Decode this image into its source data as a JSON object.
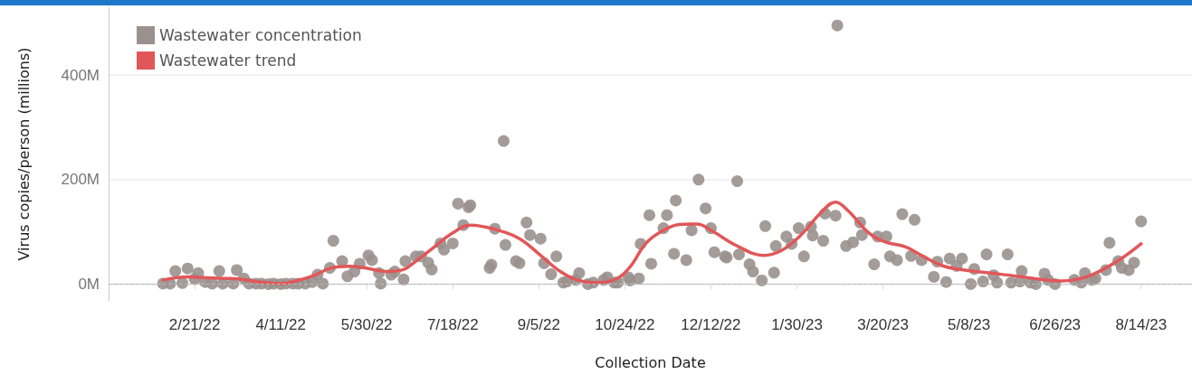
{
  "chart_data": {
    "type": "scatter",
    "xlabel": "Collection Date",
    "ylabel": "Virus copies/person (millions)",
    "xlim": [
      "2022-01-03",
      "2023-09-12"
    ],
    "xticks": [
      {
        "value": "2022-02-21",
        "label": "2/21/22"
      },
      {
        "value": "2022-04-11",
        "label": "4/11/22"
      },
      {
        "value": "2022-05-30",
        "label": "5/30/22"
      },
      {
        "value": "2022-07-18",
        "label": "7/18/22"
      },
      {
        "value": "2022-09-05",
        "label": "9/5/22"
      },
      {
        "value": "2022-10-24",
        "label": "10/24/22"
      },
      {
        "value": "2022-12-12",
        "label": "12/12/22"
      },
      {
        "value": "2023-01-30",
        "label": "1/30/23"
      },
      {
        "value": "2023-03-20",
        "label": "3/20/23"
      },
      {
        "value": "2023-05-08",
        "label": "5/8/23"
      },
      {
        "value": "2023-06-26",
        "label": "6/26/23"
      },
      {
        "value": "2023-08-14",
        "label": "8/14/23"
      }
    ],
    "ylim": [
      -32,
      530
    ],
    "yticks": [
      {
        "value": 0,
        "label": "0M"
      },
      {
        "value": 200,
        "label": "200M"
      },
      {
        "value": 400,
        "label": "400M"
      }
    ],
    "grid": "y",
    "legend": "top left",
    "marker": "circle",
    "ref_lines": [
      {
        "axis": "y",
        "value": 0,
        "label": null,
        "color": "#bbbbbb",
        "line_style": "dashed"
      }
    ],
    "series": [
      {
        "name": "Wastewater concentration",
        "color": "#9a918e",
        "x": [
          "2022-02-03",
          "2022-02-07",
          "2022-02-10",
          "2022-02-14",
          "2022-02-17",
          "2022-02-21",
          "2022-02-23",
          "2022-02-27",
          "2022-03-03",
          "2022-03-07",
          "2022-03-09",
          "2022-03-15",
          "2022-03-17",
          "2022-03-21",
          "2022-03-24",
          "2022-03-28",
          "2022-03-31",
          "2022-04-04",
          "2022-04-07",
          "2022-04-11",
          "2022-04-14",
          "2022-04-18",
          "2022-04-21",
          "2022-04-25",
          "2022-04-29",
          "2022-05-02",
          "2022-05-05",
          "2022-05-09",
          "2022-05-11",
          "2022-05-16",
          "2022-05-19",
          "2022-05-23",
          "2022-05-26",
          "2022-05-31",
          "2022-06-02",
          "2022-06-06",
          "2022-06-07",
          "2022-06-13",
          "2022-06-15",
          "2022-06-20",
          "2022-06-21",
          "2022-06-27",
          "2022-06-30",
          "2022-07-04",
          "2022-07-06",
          "2022-07-11",
          "2022-07-13",
          "2022-07-18",
          "2022-07-21",
          "2022-07-24",
          "2022-07-27",
          "2022-07-28",
          "2022-08-08",
          "2022-08-09",
          "2022-08-11",
          "2022-08-16",
          "2022-08-17",
          "2022-08-23",
          "2022-08-25",
          "2022-08-29",
          "2022-08-31",
          "2022-09-06",
          "2022-09-08",
          "2022-09-12",
          "2022-09-15",
          "2022-09-19",
          "2022-09-21",
          "2022-09-26",
          "2022-09-28",
          "2022-10-03",
          "2022-10-06",
          "2022-10-12",
          "2022-10-14",
          "2022-10-18",
          "2022-10-20",
          "2022-10-26",
          "2022-10-27",
          "2022-11-01",
          "2022-11-02",
          "2022-11-07",
          "2022-11-08",
          "2022-11-15",
          "2022-11-17",
          "2022-11-21",
          "2022-11-22",
          "2022-11-28",
          "2022-12-01",
          "2022-12-05",
          "2022-12-09",
          "2022-12-12",
          "2022-12-14",
          "2022-12-20",
          "2022-12-21",
          "2022-12-27",
          "2022-12-28",
          "2023-01-03",
          "2023-01-05",
          "2023-01-10",
          "2023-01-12",
          "2023-01-17",
          "2023-01-18",
          "2023-01-24",
          "2023-01-27",
          "2023-01-31",
          "2023-02-03",
          "2023-02-07",
          "2023-02-08",
          "2023-02-14",
          "2023-02-15",
          "2023-02-21",
          "2023-02-22",
          "2023-02-27",
          "2023-03-03",
          "2023-03-07",
          "2023-03-08",
          "2023-03-15",
          "2023-03-17",
          "2023-03-22",
          "2023-03-24",
          "2023-03-28",
          "2023-03-31",
          "2023-04-05",
          "2023-04-07",
          "2023-04-11",
          "2023-04-18",
          "2023-04-20",
          "2023-04-25",
          "2023-04-27",
          "2023-05-01",
          "2023-05-04",
          "2023-05-09",
          "2023-05-11",
          "2023-05-16",
          "2023-05-18",
          "2023-05-22",
          "2023-05-24",
          "2023-05-30",
          "2023-06-01",
          "2023-06-06",
          "2023-06-07",
          "2023-06-12",
          "2023-06-15",
          "2023-06-20",
          "2023-06-22",
          "2023-06-26",
          "2023-07-07",
          "2023-07-11",
          "2023-07-13",
          "2023-07-17",
          "2023-07-19",
          "2023-07-25",
          "2023-07-27",
          "2023-08-01",
          "2023-08-03",
          "2023-08-07",
          "2023-08-10",
          "2023-08-14"
        ],
        "values": [
          1,
          1,
          25,
          2,
          30,
          10,
          21,
          4,
          1,
          25,
          1,
          1,
          27,
          11,
          1,
          1,
          1,
          0,
          1,
          0,
          1,
          1,
          1,
          1,
          4,
          18,
          1,
          31,
          83,
          44,
          15,
          24,
          39,
          55,
          46,
          21,
          1,
          18,
          24,
          9,
          44,
          53,
          53,
          41,
          28,
          78,
          66,
          78,
          154,
          113,
          147,
          151,
          31,
          37,
          106,
          274,
          75,
          44,
          40,
          118,
          94,
          87,
          40,
          19,
          53,
          3,
          5,
          8,
          21,
          0,
          3,
          8,
          13,
          3,
          3,
          13,
          7,
          11,
          77,
          132,
          39,
          107,
          132,
          58,
          160,
          46,
          103,
          200,
          145,
          107,
          61,
          53,
          51,
          197,
          57,
          38,
          24,
          7,
          111,
          22,
          73,
          91,
          77,
          107,
          53,
          110,
          93,
          83,
          135,
          131,
          495,
          73,
          80,
          118,
          94,
          38,
          91,
          91,
          53,
          46,
          134,
          54,
          123,
          46,
          14,
          43,
          4,
          49,
          35,
          49,
          0,
          29,
          5,
          57,
          17,
          3,
          57,
          3,
          5,
          25,
          3,
          0,
          20,
          8,
          0,
          8,
          3,
          21,
          8,
          11,
          27,
          79,
          44,
          31,
          27,
          41,
          120
        ]
      },
      {
        "name": "Wastewater trend",
        "type": "line",
        "color": "#e15759",
        "marker": "none",
        "line_style": "solid",
        "x": [
          "2022-02-03",
          "2022-02-17",
          "2022-02-28",
          "2022-03-18",
          "2022-03-30",
          "2022-04-11",
          "2022-04-23",
          "2022-05-01",
          "2022-05-09",
          "2022-05-20",
          "2022-05-29",
          "2022-06-10",
          "2022-06-20",
          "2022-06-27",
          "2022-07-07",
          "2022-07-18",
          "2022-07-28",
          "2022-08-12",
          "2022-08-25",
          "2022-09-06",
          "2022-09-16",
          "2022-09-26",
          "2022-10-08",
          "2022-10-19",
          "2022-10-27",
          "2022-11-05",
          "2022-11-14",
          "2022-11-24",
          "2022-12-04",
          "2022-12-13",
          "2022-12-27",
          "2023-01-11",
          "2023-01-21",
          "2023-02-01",
          "2023-02-13",
          "2023-02-21",
          "2023-02-28",
          "2023-03-12",
          "2023-03-21",
          "2023-04-02",
          "2023-04-12",
          "2023-04-23",
          "2023-05-03",
          "2023-05-18",
          "2023-06-05",
          "2023-06-18",
          "2023-06-30",
          "2023-07-11",
          "2023-07-21",
          "2023-08-02",
          "2023-08-14"
        ],
        "values": [
          8,
          14,
          12,
          10,
          4,
          1,
          9,
          18,
          30,
          34,
          31,
          24,
          28,
          44,
          70,
          98,
          113,
          104,
          87,
          55,
          27,
          9,
          3,
          10,
          33,
          78,
          101,
          114,
          115,
          101,
          73,
          55,
          64,
          93,
          138,
          157,
          141,
          98,
          81,
          71,
          53,
          35,
          28,
          22,
          15,
          9,
          6,
          11,
          24,
          47,
          77
        ]
      }
    ]
  }
}
